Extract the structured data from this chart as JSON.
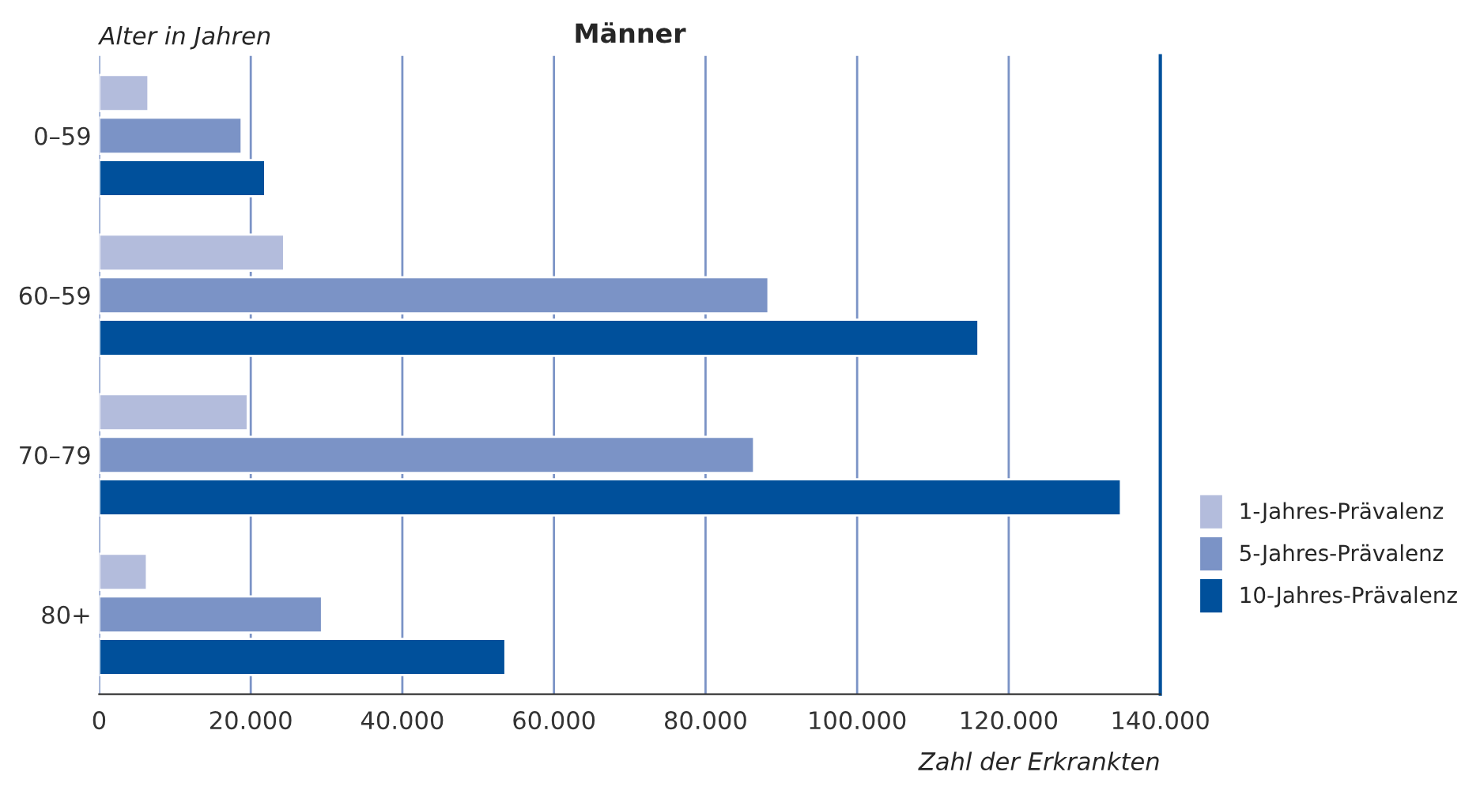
{
  "chart_data": {
    "type": "bar",
    "orientation": "horizontal",
    "title": "Männer",
    "ylabel": "Alter in Jahren",
    "xlabel": "Zahl der Erkrankten",
    "categories": [
      "0–59",
      "60–59",
      "70–79",
      "80+"
    ],
    "series": [
      {
        "name": "1-Jahres-Prävalenz",
        "color": "#b3bcdc",
        "values": [
          6500,
          24400,
          19600,
          6300
        ]
      },
      {
        "name": "5-Jahres-Prävalenz",
        "color": "#7b93c6",
        "values": [
          18800,
          88300,
          86400,
          29400
        ]
      },
      {
        "name": "10-Jahres-Prävalenz",
        "color": "#00509b",
        "values": [
          21900,
          116000,
          134800,
          53600
        ]
      }
    ],
    "xlim": [
      0,
      140000
    ],
    "xticks": [
      0,
      {
        "value": 20000,
        "label": "20.000"
      },
      {
        "value": 40000,
        "label": "40.000"
      },
      {
        "value": 60000,
        "label": "60.000"
      },
      {
        "value": 80000,
        "label": "80.000"
      },
      {
        "value": 100000,
        "label": "100.000"
      },
      {
        "value": 120000,
        "label": "120.000"
      },
      {
        "value": 140000,
        "label": "140.000"
      }
    ],
    "grid": "x",
    "legend": "right"
  }
}
